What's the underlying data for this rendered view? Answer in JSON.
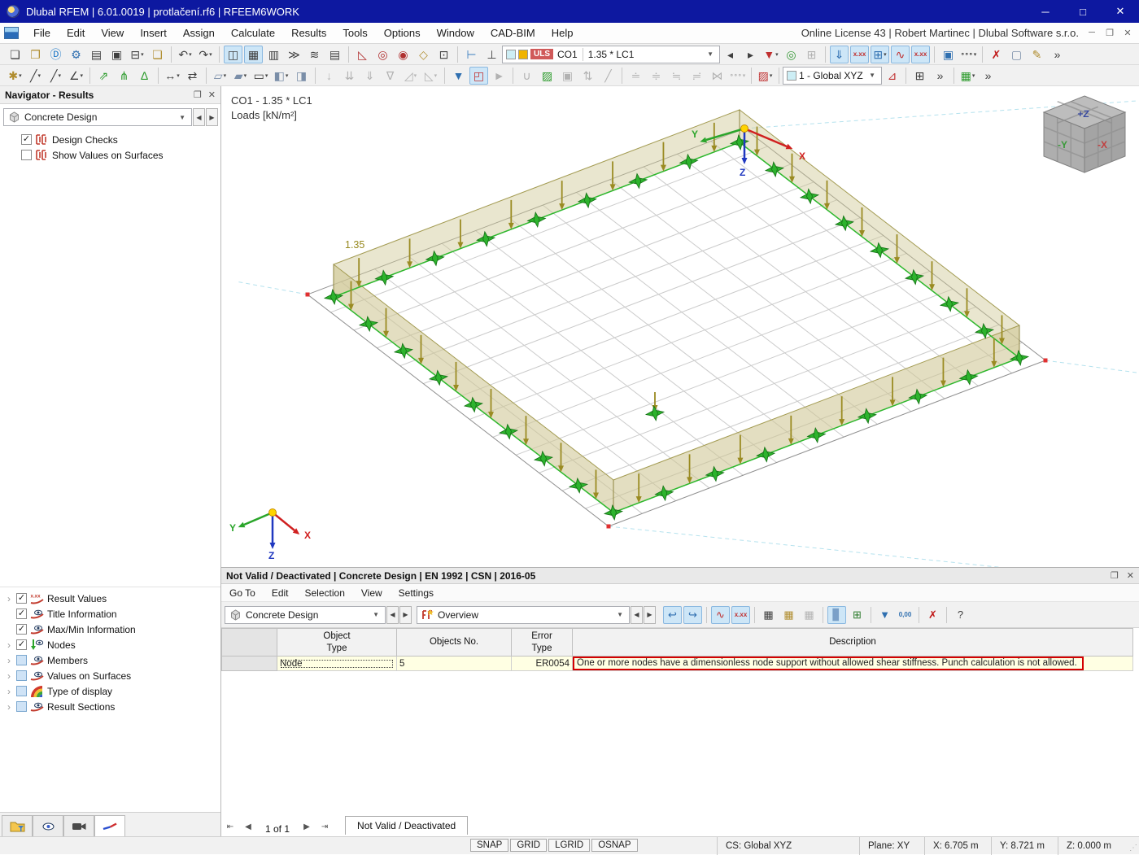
{
  "window": {
    "title": "Dlubal RFEM | 6.01.0019 | protlačení.rf6 | RFEEM6WORK"
  },
  "menubar": {
    "items": [
      "File",
      "Edit",
      "View",
      "Insert",
      "Assign",
      "Calculate",
      "Results",
      "Tools",
      "Options",
      "Window",
      "CAD-BIM",
      "Help"
    ],
    "license_text": "Online License 43 | Robert Martinec | Dlubal Software s.r.o."
  },
  "toolbar1": {
    "results_combo": {
      "uls": "ULS",
      "case": "CO1",
      "load": "1.35 * LC1"
    },
    "items": [
      {
        "t": "i",
        "n": "new-model",
        "g": "❏"
      },
      {
        "t": "i",
        "n": "open-file",
        "g": "❐",
        "col": "#b08d2f"
      },
      {
        "t": "i",
        "n": "dlubal-center",
        "g": "Ⓓ",
        "col": "#1d78c8"
      },
      {
        "t": "i",
        "n": "model-settings",
        "g": "⚙",
        "col": "#2f6fb0"
      },
      {
        "t": "i",
        "n": "base-data",
        "g": "▤"
      },
      {
        "t": "i",
        "n": "save",
        "g": "▣"
      },
      {
        "t": "i",
        "n": "print",
        "g": "⊟",
        "c": 1
      },
      {
        "t": "i",
        "n": "new-from-template",
        "g": "❏",
        "col": "#b08d2f"
      },
      {
        "t": "s"
      },
      {
        "t": "i",
        "n": "undo",
        "g": "↶",
        "c": 1
      },
      {
        "t": "i",
        "n": "redo",
        "g": "↷",
        "c": 1
      },
      {
        "t": "s"
      },
      {
        "t": "i",
        "n": "navigator-toggle",
        "g": "◫",
        "a": 1
      },
      {
        "t": "i",
        "n": "tables-toggle",
        "g": "▦",
        "a": 1
      },
      {
        "t": "i",
        "n": "display-properties",
        "g": "▥"
      },
      {
        "t": "i",
        "n": "command-console",
        "g": "≫"
      },
      {
        "t": "i",
        "n": "scale-settings",
        "g": "≋"
      },
      {
        "t": "i",
        "n": "printout-report",
        "g": "▤"
      },
      {
        "t": "s"
      },
      {
        "t": "i",
        "n": "select-special",
        "g": "◺",
        "col": "#b03030"
      },
      {
        "t": "i",
        "n": "select-rotated",
        "g": "◎",
        "col": "#b03030"
      },
      {
        "t": "i",
        "n": "select-circle",
        "g": "◉",
        "col": "#b03030"
      },
      {
        "t": "i",
        "n": "select-region",
        "g": "◇",
        "col": "#b08d2f"
      },
      {
        "t": "i",
        "n": "select-numbering",
        "g": "⊡"
      },
      {
        "t": "s"
      },
      {
        "t": "i",
        "n": "guide-object",
        "g": "⊢",
        "col": "#3a7ec0"
      },
      {
        "t": "i",
        "n": "guide-line",
        "g": "⊥"
      },
      {
        "t": "c1"
      },
      {
        "t": "i",
        "n": "combo-prev",
        "g": "◂"
      },
      {
        "t": "i",
        "n": "combo-next",
        "g": "▸"
      },
      {
        "t": "i",
        "n": "filter-results",
        "g": "▼",
        "col": "#c03030",
        "c": 1
      },
      {
        "t": "i",
        "n": "animate-loads",
        "g": "◎",
        "col": "#3a9a3a"
      },
      {
        "t": "i",
        "n": "result-values-lock",
        "g": "⊞",
        "d": 1
      },
      {
        "t": "s"
      },
      {
        "t": "i",
        "n": "show-results",
        "g": "⇓",
        "a": 1,
        "col": "#2f6fb0"
      },
      {
        "t": "i",
        "n": "show-result-values",
        "g": "x.xx",
        "a": 1,
        "col": "#c03030"
      },
      {
        "t": "i",
        "n": "results-on-grid",
        "g": "⊞",
        "a": 1,
        "c": 1,
        "col": "#2f6fb0"
      },
      {
        "t": "i",
        "n": "result-diagram",
        "g": "∿",
        "a": 1,
        "col": "#c03030"
      },
      {
        "t": "i",
        "n": "result-values-all",
        "g": "x.xx",
        "a": 1,
        "col": "#c03030"
      },
      {
        "t": "s"
      },
      {
        "t": "i",
        "n": "save-display-settings",
        "g": "▣",
        "col": "#2f6fb0"
      },
      {
        "t": "i",
        "n": "display-profile",
        "g": "∘∘∘",
        "c": 1
      },
      {
        "t": "s"
      },
      {
        "t": "i",
        "n": "delete-results",
        "g": "✗",
        "col": "#c01818"
      },
      {
        "t": "i",
        "n": "render-wireframe",
        "g": "▢",
        "col": "#7a8ea8"
      },
      {
        "t": "i",
        "n": "render-solid-edit",
        "g": "✎",
        "col": "#b08d2f"
      },
      {
        "t": "i",
        "n": "toolbar-overflow",
        "g": "»"
      }
    ]
  },
  "toolbar2": {
    "cs_combo": {
      "label": "1 - Global XYZ"
    },
    "items": [
      {
        "t": "i",
        "n": "new-node",
        "g": "✱",
        "col": "#b08d2f",
        "c": 1
      },
      {
        "t": "i",
        "n": "new-line",
        "g": "╱",
        "c": 1
      },
      {
        "t": "i",
        "n": "new-line-type",
        "g": "╱",
        "c": 1
      },
      {
        "t": "i",
        "n": "new-polyline",
        "g": "∠",
        "c": 1
      },
      {
        "t": "s"
      },
      {
        "t": "i",
        "n": "new-member",
        "g": "⇗",
        "col": "#2a9a2a"
      },
      {
        "t": "i",
        "n": "new-member-set",
        "g": "⋔",
        "col": "#2a9a2a"
      },
      {
        "t": "i",
        "n": "new-member-group",
        "g": "∆",
        "col": "#2a9a2a"
      },
      {
        "t": "s"
      },
      {
        "t": "i",
        "n": "new-dimension",
        "g": "↔",
        "c": 1
      },
      {
        "t": "i",
        "n": "new-dimension-xx",
        "g": "⇄"
      },
      {
        "t": "s"
      },
      {
        "t": "i",
        "n": "new-surface",
        "g": "▱",
        "col": "#7a8ea8",
        "c": 1
      },
      {
        "t": "i",
        "n": "new-surface-nurbs",
        "g": "▰",
        "col": "#7a8ea8",
        "c": 1
      },
      {
        "t": "i",
        "n": "new-opening",
        "g": "▭",
        "c": 1
      },
      {
        "t": "i",
        "n": "new-solid",
        "g": "◧",
        "col": "#7a8ea8",
        "c": 1
      },
      {
        "t": "i",
        "n": "new-block",
        "g": "◨",
        "col": "#7a8ea8"
      },
      {
        "t": "s"
      },
      {
        "t": "i",
        "n": "nodal-load",
        "g": "↓",
        "d": 1
      },
      {
        "t": "i",
        "n": "member-load",
        "g": "⇊",
        "d": 1
      },
      {
        "t": "i",
        "n": "surface-load",
        "g": "⇓",
        "d": 1
      },
      {
        "t": "i",
        "n": "free-load",
        "g": "∇",
        "d": 1
      },
      {
        "t": "i",
        "n": "load-transform",
        "g": "◿",
        "d": 1,
        "c": 1
      },
      {
        "t": "i",
        "n": "load-generate",
        "g": "◺",
        "d": 1,
        "c": 1
      },
      {
        "t": "s"
      },
      {
        "t": "i",
        "n": "filter-view",
        "g": "▼",
        "col": "#2f6fb0"
      },
      {
        "t": "i",
        "n": "section-box",
        "g": "◰",
        "a": 1,
        "col": "#c03030"
      },
      {
        "t": "i",
        "n": "result-animation",
        "g": "►",
        "d": 1
      },
      {
        "t": "s"
      },
      {
        "t": "i",
        "n": "result-beam-diagram",
        "g": "∪",
        "d": 1
      },
      {
        "t": "i",
        "n": "isosurfaces",
        "g": "▨",
        "col": "#2a9a2a"
      },
      {
        "t": "i",
        "n": "panel-render",
        "g": "▣",
        "d": 1
      },
      {
        "t": "i",
        "n": "reverse-arrows",
        "g": "⇅",
        "d": 1
      },
      {
        "t": "i",
        "n": "inclined-view",
        "g": "╱",
        "d": 1
      },
      {
        "t": "s"
      },
      {
        "t": "i",
        "n": "smoothing-1",
        "g": "≐",
        "d": 1
      },
      {
        "t": "i",
        "n": "smoothing-2",
        "g": "≑",
        "d": 1
      },
      {
        "t": "i",
        "n": "smoothing-3",
        "g": "≒",
        "d": 1
      },
      {
        "t": "i",
        "n": "smoothing-4",
        "g": "≓",
        "d": 1
      },
      {
        "t": "i",
        "n": "smoothing-5",
        "g": "⋈",
        "d": 1
      },
      {
        "t": "i",
        "n": "smoothing-custom",
        "g": "∘∘∘",
        "d": 1,
        "c": 1
      },
      {
        "t": "s"
      },
      {
        "t": "i",
        "n": "color-scale",
        "g": "▨",
        "col": "#c03030",
        "c": 1
      },
      {
        "t": "s"
      },
      {
        "t": "c2"
      },
      {
        "t": "i",
        "n": "work-plane",
        "g": "⊿",
        "col": "#c03030"
      },
      {
        "t": "s"
      },
      {
        "t": "i",
        "n": "grid-settings",
        "g": "⊞"
      },
      {
        "t": "i",
        "n": "toolbar2-overflow",
        "g": "»"
      },
      {
        "t": "s"
      },
      {
        "t": "i",
        "n": "visual-objects",
        "g": "▦",
        "col": "#2a9a2a",
        "c": 1
      },
      {
        "t": "i",
        "n": "toolbar2-overflow-2",
        "g": "»"
      }
    ]
  },
  "navigator": {
    "title": "Navigator - Results",
    "combo": "Concrete Design",
    "items": [
      {
        "label": "Design Checks",
        "state": "checked",
        "icon": "measure"
      },
      {
        "label": "Show Values on Surfaces",
        "state": "unchecked",
        "icon": "measure"
      }
    ]
  },
  "display_tree": {
    "items": [
      {
        "label": "Result Values",
        "state": "checked",
        "icon": "xxx",
        "exp": 1
      },
      {
        "label": "Title Information",
        "state": "checked",
        "icon": "eye",
        "exp": 0
      },
      {
        "label": "Max/Min Information",
        "state": "checked",
        "icon": "eye",
        "exp": 0
      },
      {
        "label": "Nodes",
        "state": "checked",
        "icon": "nodeeye",
        "exp": 1
      },
      {
        "label": "Members",
        "state": "blue",
        "icon": "eye",
        "exp": 1
      },
      {
        "label": "Values on Surfaces",
        "state": "blue",
        "icon": "eye",
        "exp": 1
      },
      {
        "label": "Type of display",
        "state": "blue",
        "icon": "rainbow",
        "exp": 1
      },
      {
        "label": "Result Sections",
        "state": "blue",
        "icon": "eye",
        "exp": 1
      }
    ]
  },
  "viewport": {
    "combo_label": "CO1 - 1.35 * LC1",
    "loads_label": "Loads [kN/m²]",
    "load_value": "1.35",
    "axis": {
      "x": "X",
      "y": "Y",
      "z": "Z"
    },
    "cube": {
      "top": "+Z",
      "left": "-Y",
      "right": "-X"
    }
  },
  "result_panel": {
    "title": "Not Valid / Deactivated | Concrete Design | EN 1992 | CSN | 2016-05",
    "menu": [
      "Go To",
      "Edit",
      "Selection",
      "View",
      "Settings"
    ],
    "combo1": "Concrete Design",
    "combo2": "Overview",
    "toolbar_items": [
      {
        "t": "i",
        "n": "jump-back",
        "g": "↩",
        "a": 1,
        "col": "#2f6fb0"
      },
      {
        "t": "i",
        "n": "jump-forward",
        "g": "↪",
        "a": 1,
        "col": "#2f6fb0"
      },
      {
        "t": "s"
      },
      {
        "t": "i",
        "n": "show-diagram",
        "g": "∿",
        "a": 1,
        "col": "#c03030"
      },
      {
        "t": "i",
        "n": "show-values",
        "g": "x.xx",
        "a": 1,
        "col": "#c03030"
      },
      {
        "t": "s"
      },
      {
        "t": "i",
        "n": "table-view",
        "g": "▦"
      },
      {
        "t": "i",
        "n": "table-filtered",
        "g": "▦",
        "col": "#b08d2f"
      },
      {
        "t": "i",
        "n": "table-compact",
        "g": "▦",
        "d": 1
      },
      {
        "t": "s"
      },
      {
        "t": "i",
        "n": "chart-panel",
        "g": "▊",
        "a": 1,
        "col": "#7aa0c8"
      },
      {
        "t": "i",
        "n": "export-excel",
        "g": "⊞",
        "col": "#2a7a2a"
      },
      {
        "t": "s"
      },
      {
        "t": "i",
        "n": "table-filter",
        "g": "▼",
        "col": "#2f6fb0"
      },
      {
        "t": "i",
        "n": "decimal-places",
        "g": "0,00",
        "col": "#2f6fb0"
      },
      {
        "t": "s"
      },
      {
        "t": "i",
        "n": "deselect",
        "g": "✗",
        "col": "#c01818"
      },
      {
        "t": "s"
      },
      {
        "t": "i",
        "n": "table-help",
        "g": "?",
        "col": "#444"
      }
    ],
    "table": {
      "headers": [
        "Object\nType",
        "Objects No.",
        "Error\nType",
        "Description"
      ],
      "rows": [
        {
          "object_type": "Node",
          "objects_no": "5",
          "error_type": "ER0054",
          "description": "One or more nodes have a dimensionless node support without allowed shear stiffness. Punch calculation is not allowed."
        }
      ]
    },
    "pagination": "1 of 1",
    "tab": "Not Valid / Deactivated"
  },
  "status_bar": {
    "toggles": [
      "SNAP",
      "GRID",
      "LGRID",
      "OSNAP"
    ],
    "cs": "CS: Global XYZ",
    "plane": "Plane: XY",
    "x": "X: 6.705 m",
    "y": "Y: 8.721 m",
    "z": "Z: 0.000 m"
  }
}
